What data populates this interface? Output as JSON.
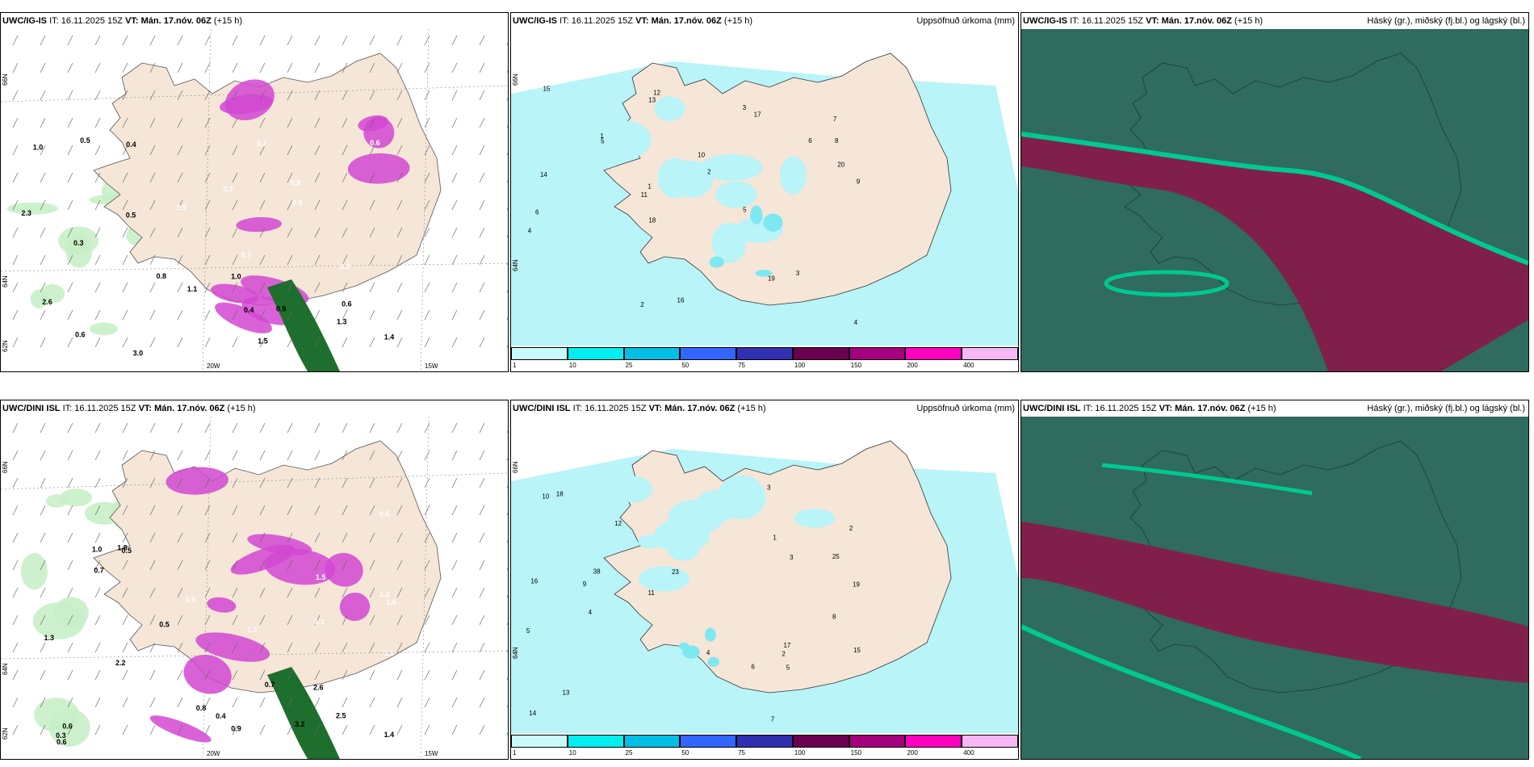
{
  "rows": [
    {
      "model": "UWC/IG-IS",
      "panel_a": {
        "model": "UWC/IG-IS",
        "it_label": "IT:",
        "it_value": "16.11.2025 15Z",
        "vt_label": "VT:",
        "vt_value": "Mán. 17.nóv. 06Z",
        "lead": "(+15 h)",
        "lat_labels": [
          "66N",
          "64N",
          "62N"
        ],
        "lon_labels": [
          "20W",
          "15W"
        ],
        "precip_labels": [
          "0.6",
          "0.7",
          "0.9",
          "1.0",
          "1.1",
          "0.7",
          "0.6",
          "0.8",
          "0.7",
          "0.5",
          "0.9",
          "1.0",
          "1.4",
          "1.3",
          "2.9",
          "3.0",
          "2.6",
          "2.3",
          "1.5",
          "0.8",
          "0.3",
          "0.4",
          "0.6",
          "0.5",
          "0.4",
          "0.9"
        ]
      },
      "panel_b": {
        "model": "UWC/IG-IS",
        "it_label": "IT:",
        "it_value": "16.11.2025 15Z",
        "vt_label": "VT:",
        "vt_value": "Mán. 17.nóv. 06Z",
        "lead": "(+15 h)",
        "field_title": "Uppsöfnuð úrkoma (mm)",
        "lat_labels": [
          "66N",
          "64N"
        ],
        "acc_labels": [
          "3",
          "4",
          "5",
          "2",
          "1",
          "10",
          "6",
          "7",
          "11",
          "14",
          "13",
          "15",
          "19",
          "20",
          "9",
          "12",
          "8",
          "16",
          "18",
          "17",
          "3",
          "4",
          "2",
          "1",
          "5",
          "6"
        ]
      },
      "panel_c": {
        "model": "UWC/IG-IS",
        "it_label": "IT:",
        "it_value": "16.11.2025 15Z",
        "vt_label": "VT:",
        "vt_value": "Mán. 17.nóv. 06Z",
        "lead": "(+15 h)",
        "field_title": "Háský (gr.), miðský (fj.bl.) og lágský (bl.)"
      }
    },
    {
      "model": "UWC/DINI ISL",
      "panel_a": {
        "model": "UWC/DINI ISL",
        "it_label": "IT:",
        "it_value": "16.11.2025 15Z",
        "vt_label": "VT:",
        "vt_value": "Mán. 17.nóv. 06Z",
        "lead": "(+15 h)",
        "lat_labels": [
          "66N",
          "64N",
          "62N"
        ],
        "lon_labels": [
          "20W",
          "15W"
        ],
        "precip_labels": [
          "0.6",
          "0.5",
          "0.7",
          "1.1",
          "0.9",
          "1.0",
          "0.8",
          "0.6",
          "1.2",
          "1.4",
          "2.6",
          "2.2",
          "1.5",
          "0.5",
          "0.9",
          "1.8",
          "1.3",
          "2.5",
          "3.2",
          "0.7",
          "1.1",
          "0.4",
          "0.3",
          "1.7",
          "1.6",
          "0.6"
        ]
      },
      "panel_b": {
        "model": "UWC/DINI ISL",
        "it_label": "IT:",
        "it_value": "16.11.2025 15Z",
        "vt_label": "VT:",
        "vt_value": "Mán. 17.nóv. 06Z",
        "lead": "(+15 h)",
        "field_title": "Uppsöfnuð úrkoma (mm)",
        "lat_labels": [
          "66N",
          "64N"
        ],
        "acc_labels": [
          "3",
          "4",
          "5",
          "2",
          "1",
          "6",
          "7",
          "11",
          "13",
          "16",
          "17",
          "23",
          "19",
          "12",
          "15",
          "25",
          "38",
          "10",
          "9",
          "8",
          "14",
          "18",
          "3",
          "4",
          "5",
          "2"
        ]
      },
      "panel_c": {
        "model": "UWC/DINI ISL",
        "it_label": "IT:",
        "it_value": "16.11.2025 15Z",
        "vt_label": "VT:",
        "vt_value": "Mán. 17.nóv. 06Z",
        "lead": "(+15 h)",
        "field_title": "Háský (gr.), miðský (fj.bl.) og lágský (bl.)"
      }
    }
  ],
  "legend": {
    "ticks": [
      "1",
      "10",
      "25",
      "50",
      "75",
      "100",
      "150",
      "200",
      "400"
    ],
    "colors": [
      "#c8fcfc",
      "#00eeee",
      "#00bfe6",
      "#3366ff",
      "#3030b0",
      "#6b0050",
      "#a5007e",
      "#ff00c0",
      "#f5b8f5"
    ]
  },
  "colors": {
    "land": "#f5e6d8",
    "cyan_light": "#b8f4f8",
    "cyan": "#7ee8f0",
    "magenta": "#d246d2",
    "green_dark": "#1e6e2e",
    "green_light": "#c8f0c8",
    "cloud_high": "#2f6b5e",
    "cloud_mid": "#8a1848",
    "cloud_low": "#00c890"
  }
}
